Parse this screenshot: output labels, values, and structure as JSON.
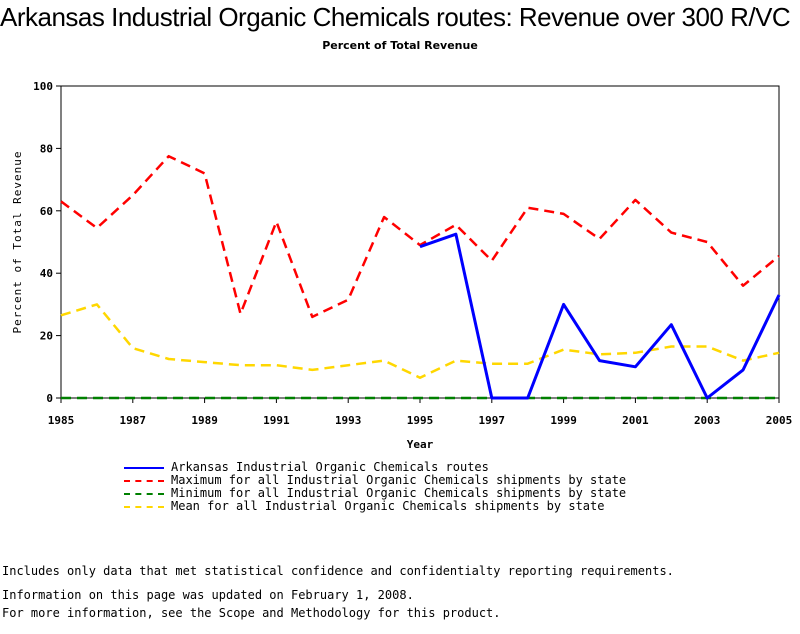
{
  "chart_data": {
    "type": "line",
    "title": "Arkansas Industrial Organic Chemicals routes: Revenue over 300 R/VC",
    "subtitle": "Percent of Total Revenue",
    "xlabel": "Year",
    "ylabel": "Percent of Total Revenue",
    "xlim": [
      1985,
      2005
    ],
    "ylim": [
      0,
      100
    ],
    "x_ticks": [
      "1985",
      "1987",
      "1989",
      "1991",
      "1993",
      "1995",
      "1997",
      "1999",
      "2001",
      "2003",
      "2005"
    ],
    "y_ticks": [
      "0",
      "20",
      "40",
      "60",
      "80",
      "100"
    ],
    "grid": false,
    "legend_position": "bottom",
    "series": [
      {
        "name": "Arkansas Industrial Organic Chemicals routes",
        "color": "#0000ff",
        "style": "solid",
        "x": [
          1995,
          1996,
          1997,
          1998,
          1999,
          2000,
          2001,
          2002,
          2003,
          2004,
          2005
        ],
        "values": [
          48.5,
          52.5,
          0,
          0,
          30,
          12,
          10,
          23.5,
          0,
          9,
          33
        ]
      },
      {
        "name": "Maximum for all Industrial Organic Chemicals shipments by state",
        "color": "#ff0000",
        "style": "dashed",
        "x": [
          1985,
          1986,
          1987,
          1988,
          1989,
          1990,
          1991,
          1992,
          1993,
          1994,
          1995,
          1996,
          1997,
          1998,
          1999,
          2000,
          2001,
          2002,
          2003,
          2004,
          2005
        ],
        "values": [
          63,
          54.5,
          65,
          77.5,
          72,
          27,
          56.5,
          26,
          31.5,
          58,
          49,
          55.5,
          44,
          61,
          59,
          51,
          63.5,
          53,
          50,
          36,
          45.5
        ]
      },
      {
        "name": "Minimum for all Industrial Organic Chemicals shipments by state",
        "color": "#008000",
        "style": "dashed",
        "x": [
          1985,
          1986,
          1987,
          1988,
          1989,
          1990,
          1991,
          1992,
          1993,
          1994,
          1995,
          1996,
          1997,
          1998,
          1999,
          2000,
          2001,
          2002,
          2003,
          2004,
          2005
        ],
        "values": [
          0,
          0,
          0,
          0,
          0,
          0,
          0,
          0,
          0,
          0,
          0,
          0,
          0,
          0,
          0,
          0,
          0,
          0,
          0,
          0,
          0
        ]
      },
      {
        "name": "Mean for all Industrial Organic Chemicals shipments by state",
        "color": "#ffd700",
        "style": "dashed",
        "x": [
          1985,
          1986,
          1987,
          1988,
          1989,
          1990,
          1991,
          1992,
          1993,
          1994,
          1995,
          1996,
          1997,
          1998,
          1999,
          2000,
          2001,
          2002,
          2003,
          2004,
          2005
        ],
        "values": [
          26.5,
          30,
          16,
          12.5,
          11.5,
          10.5,
          10.5,
          9,
          10.5,
          12,
          6.5,
          12,
          11,
          11,
          15.5,
          14,
          14.5,
          16.5,
          16.5,
          12,
          14.5
        ]
      }
    ]
  },
  "notes": {
    "line1": "Includes only data that met statistical confidence and confidentialty reporting requirements.",
    "line2": "For more information, see the Scope and Methodology for this product.",
    "updated": "Information on this page was updated on February 1, 2008."
  }
}
